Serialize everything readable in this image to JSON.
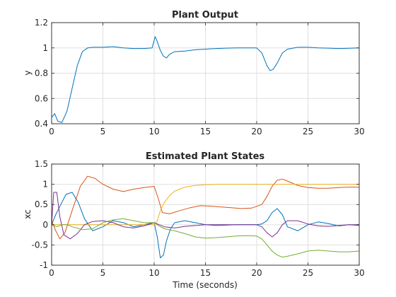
{
  "chart_data": [
    {
      "type": "line",
      "title": "Plant Output",
      "xlabel": "",
      "ylabel": "y",
      "xlim": [
        0,
        30
      ],
      "ylim": [
        0.4,
        1.2
      ],
      "xticks": [
        0,
        5,
        10,
        15,
        20,
        25,
        30
      ],
      "yticks": [
        0.4,
        0.6,
        0.8,
        1,
        1.2
      ],
      "grid": true,
      "series": [
        {
          "color": "#0072bd",
          "x": [
            0,
            0.3,
            0.6,
            1.0,
            1.5,
            2.0,
            2.5,
            3.0,
            3.5,
            4.0,
            5,
            6,
            7,
            8,
            9,
            9.8,
            10.1,
            10.3,
            10.6,
            10.9,
            11.2,
            11.5,
            12,
            13,
            14,
            15,
            16,
            17,
            18,
            19,
            20,
            20.5,
            21.0,
            21.3,
            21.6,
            22.0,
            22.5,
            23.0,
            24,
            25,
            26,
            27,
            28,
            29,
            30
          ],
          "y": [
            0.45,
            0.48,
            0.42,
            0.41,
            0.5,
            0.68,
            0.86,
            0.97,
            1.0,
            1.005,
            1.005,
            1.01,
            1.0,
            0.995,
            0.995,
            1.0,
            1.09,
            1.05,
            0.98,
            0.935,
            0.92,
            0.95,
            0.97,
            0.975,
            0.985,
            0.99,
            0.995,
            0.998,
            1.0,
            1.0,
            1.0,
            0.96,
            0.86,
            0.82,
            0.83,
            0.88,
            0.96,
            0.99,
            1.005,
            1.005,
            1.0,
            0.998,
            0.995,
            0.997,
            1.0
          ]
        }
      ]
    },
    {
      "type": "line",
      "title": "Estimated Plant States",
      "xlabel": "Time (seconds)",
      "ylabel": "xc",
      "xlim": [
        0,
        30
      ],
      "ylim": [
        -1,
        1.5
      ],
      "xticks": [
        0,
        5,
        10,
        15,
        20,
        25,
        30
      ],
      "yticks": [
        -1,
        -0.5,
        0,
        0.5,
        1,
        1.5
      ],
      "grid": true,
      "series": [
        {
          "color": "#0072bd",
          "x": [
            0,
            0.4,
            0.9,
            1.4,
            2.0,
            2.6,
            3.2,
            4.0,
            5,
            6,
            7,
            8,
            9,
            10,
            10.3,
            10.6,
            10.9,
            11.2,
            11.6,
            12,
            13,
            14,
            15,
            16,
            17,
            18,
            19,
            20,
            20.5,
            21,
            21.5,
            22,
            22.5,
            23,
            24,
            25,
            26,
            27,
            28,
            29,
            30
          ],
          "y": [
            0,
            0.25,
            0.5,
            0.75,
            0.8,
            0.55,
            0.15,
            -0.15,
            -0.05,
            0.1,
            0.05,
            -0.05,
            0.0,
            0.05,
            -0.3,
            -0.82,
            -0.75,
            -0.4,
            -0.1,
            0.05,
            0.1,
            0.05,
            0.0,
            -0.02,
            -0.01,
            0.0,
            0.0,
            0.0,
            0.02,
            0.1,
            0.3,
            0.4,
            0.25,
            -0.05,
            -0.15,
            0.0,
            0.07,
            0.03,
            -0.03,
            0.0,
            -0.02
          ]
        },
        {
          "color": "#d95319",
          "x": [
            0,
            0.4,
            0.8,
            1.3,
            2.0,
            2.8,
            3.5,
            4.2,
            5,
            6,
            7,
            8,
            9,
            10,
            10.4,
            10.8,
            11.5,
            12.5,
            13.5,
            14.5,
            15.5,
            16.5,
            17.5,
            18.5,
            19.5,
            20.5,
            21.0,
            21.5,
            22.0,
            22.5,
            23.0,
            24,
            25,
            26,
            27,
            28,
            29,
            30
          ],
          "y": [
            0.1,
            -0.15,
            -0.35,
            -0.2,
            0.35,
            0.95,
            1.2,
            1.15,
            1.0,
            0.88,
            0.82,
            0.88,
            0.92,
            0.95,
            0.65,
            0.3,
            0.27,
            0.35,
            0.42,
            0.47,
            0.46,
            0.44,
            0.42,
            0.4,
            0.41,
            0.5,
            0.7,
            0.95,
            1.1,
            1.13,
            1.08,
            0.97,
            0.92,
            0.9,
            0.9,
            0.92,
            0.93,
            0.93
          ]
        },
        {
          "color": "#edb120",
          "x": [
            0,
            1,
            2,
            3,
            4,
            5,
            6,
            7,
            8,
            9,
            10,
            10.3,
            10.6,
            11,
            11.5,
            12,
            13,
            14,
            15,
            16,
            18,
            20,
            22,
            24,
            26,
            28,
            30
          ],
          "y": [
            0,
            0,
            0,
            0,
            0,
            0,
            0,
            0,
            0,
            0,
            0,
            0.1,
            0.35,
            0.55,
            0.72,
            0.83,
            0.93,
            0.97,
            0.99,
            1.0,
            1.0,
            1.0,
            1.0,
            1.0,
            1.0,
            1.0,
            1.0
          ]
        },
        {
          "color": "#7e2f8e",
          "x": [
            0,
            0.2,
            0.5,
            0.8,
            1.2,
            1.8,
            2.5,
            3.2,
            4,
            5,
            6,
            7,
            8,
            9,
            10,
            10.5,
            11,
            12,
            13,
            15,
            17,
            19,
            20,
            20.5,
            21,
            21.5,
            22,
            22.5,
            23,
            24,
            25,
            26,
            27,
            28,
            29,
            30
          ],
          "y": [
            0,
            0.8,
            0.8,
            0.2,
            -0.25,
            -0.35,
            -0.22,
            0.0,
            0.08,
            0.1,
            0.05,
            -0.05,
            -0.08,
            -0.03,
            0.05,
            0.0,
            -0.05,
            -0.08,
            -0.04,
            0.0,
            0.0,
            0.0,
            0.0,
            -0.05,
            -0.2,
            -0.3,
            -0.2,
            0.0,
            0.1,
            0.1,
            0.02,
            -0.03,
            -0.04,
            -0.02,
            0.0,
            0.0
          ]
        },
        {
          "color": "#77ac30",
          "x": [
            0,
            0.5,
            1.0,
            1.5,
            2,
            3,
            4,
            5,
            6,
            7,
            8,
            9,
            10,
            10.4,
            11,
            12,
            13,
            14,
            15,
            16,
            17,
            18,
            19,
            20,
            20.5,
            21,
            21.5,
            22,
            22.5,
            23,
            24,
            25,
            26,
            27,
            28,
            29,
            30
          ],
          "y": [
            0,
            -0.05,
            0.0,
            0.0,
            -0.05,
            -0.12,
            -0.1,
            0.05,
            0.12,
            0.15,
            0.1,
            0.05,
            0.05,
            -0.02,
            -0.1,
            -0.15,
            -0.22,
            -0.3,
            -0.33,
            -0.32,
            -0.3,
            -0.28,
            -0.27,
            -0.28,
            -0.35,
            -0.5,
            -0.65,
            -0.75,
            -0.8,
            -0.78,
            -0.72,
            -0.65,
            -0.63,
            -0.65,
            -0.67,
            -0.67,
            -0.65
          ]
        }
      ]
    }
  ]
}
